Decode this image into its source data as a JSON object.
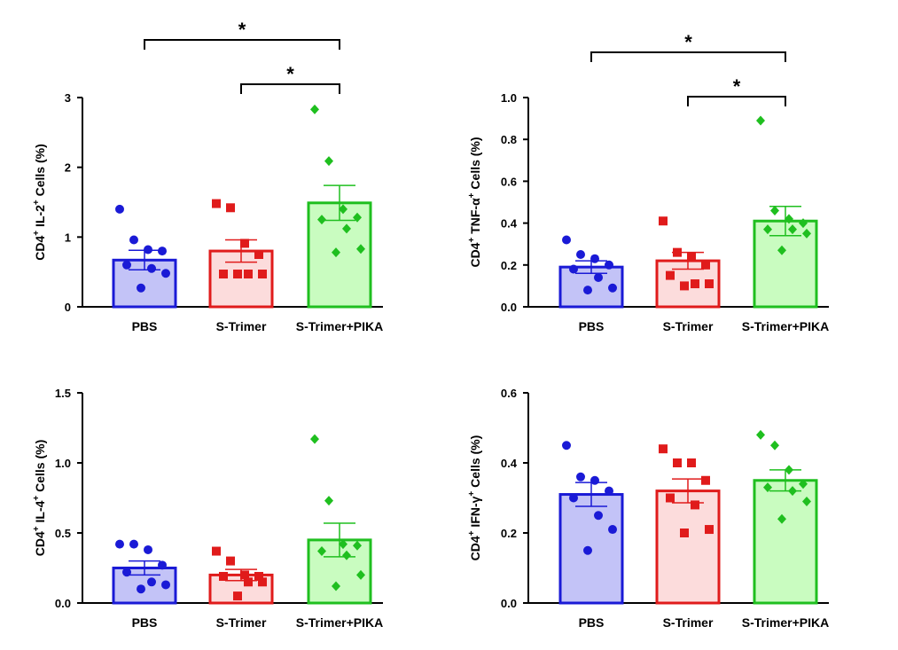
{
  "colors": {
    "PBS": {
      "stroke": "#1a1ad6",
      "fill": "#c3c3f7"
    },
    "S-Trimer": {
      "stroke": "#e01b1b",
      "fill": "#fcdcdc"
    },
    "S-Trimer+PIKA": {
      "stroke": "#1fbf1f",
      "fill": "#c9fcc0"
    }
  },
  "chart_data": [
    {
      "type": "bar",
      "ylabel": {
        "base": "CD4",
        "sup1": "+",
        "mid": " IL-2",
        "sup2": "+",
        "tail": " Cells (%)"
      },
      "categories": [
        "PBS",
        "S-Trimer",
        "S-Trimer+PIKA"
      ],
      "ylim": [
        0,
        3
      ],
      "yticks": [
        0,
        1,
        2,
        3
      ],
      "ytick_labels": [
        "0",
        "1",
        "2",
        "3"
      ],
      "means": [
        0.67,
        0.8,
        1.49
      ],
      "sem": [
        0.14,
        0.16,
        0.25
      ],
      "points": [
        [
          1.4,
          0.96,
          0.82,
          0.8,
          0.6,
          0.55,
          0.48,
          0.27
        ],
        [
          1.48,
          1.42,
          0.91,
          0.75,
          0.47,
          0.47,
          0.47,
          0.47
        ],
        [
          2.83,
          2.09,
          1.4,
          1.28,
          1.25,
          1.12,
          0.83,
          0.78
        ]
      ],
      "markers": [
        "circle",
        "square",
        "diamond"
      ],
      "significance": [
        {
          "from": 0,
          "to": 2,
          "label": "*",
          "level": 1
        },
        {
          "from": 1,
          "to": 2,
          "label": "*",
          "level": 0
        }
      ]
    },
    {
      "type": "bar",
      "ylabel": {
        "base": "CD4",
        "sup1": "+",
        "mid": " TNF-α",
        "sup2": "+",
        "tail": " Cells (%)"
      },
      "categories": [
        "PBS",
        "S-Trimer",
        "S-Trimer+PIKA"
      ],
      "ylim": [
        0,
        1
      ],
      "yticks": [
        0,
        0.2,
        0.4,
        0.6,
        0.8,
        1.0
      ],
      "ytick_labels": [
        "0.0",
        "0.2",
        "0.4",
        "0.6",
        "0.8",
        "1.0"
      ],
      "means": [
        0.19,
        0.22,
        0.41
      ],
      "sem": [
        0.03,
        0.04,
        0.07
      ],
      "points": [
        [
          0.32,
          0.25,
          0.23,
          0.2,
          0.18,
          0.14,
          0.09,
          0.08
        ],
        [
          0.41,
          0.26,
          0.24,
          0.2,
          0.15,
          0.11,
          0.11,
          0.1
        ],
        [
          0.89,
          0.46,
          0.42,
          0.4,
          0.37,
          0.37,
          0.35,
          0.27
        ]
      ],
      "markers": [
        "circle",
        "square",
        "diamond"
      ],
      "significance": [
        {
          "from": 0,
          "to": 2,
          "label": "*",
          "level": 1
        },
        {
          "from": 1,
          "to": 2,
          "label": "*",
          "level": 0
        }
      ]
    },
    {
      "type": "bar",
      "ylabel": {
        "base": "CD4",
        "sup1": "+",
        "mid": " IL-4",
        "sup2": "+",
        "tail": " Cells (%)"
      },
      "categories": [
        "PBS",
        "S-Trimer",
        "S-Trimer+PIKA"
      ],
      "ylim": [
        0,
        1.5
      ],
      "yticks": [
        0,
        0.5,
        1.0,
        1.5
      ],
      "ytick_labels": [
        "0.0",
        "0.5",
        "1.0",
        "1.5"
      ],
      "means": [
        0.25,
        0.2,
        0.45
      ],
      "sem": [
        0.05,
        0.04,
        0.12
      ],
      "points": [
        [
          0.42,
          0.42,
          0.38,
          0.27,
          0.22,
          0.15,
          0.13,
          0.1
        ],
        [
          0.37,
          0.3,
          0.2,
          0.19,
          0.19,
          0.15,
          0.15,
          0.05
        ],
        [
          1.17,
          0.73,
          0.42,
          0.41,
          0.37,
          0.34,
          0.2,
          0.12
        ]
      ],
      "markers": [
        "circle",
        "square",
        "diamond"
      ],
      "significance": []
    },
    {
      "type": "bar",
      "ylabel": {
        "base": "CD4",
        "sup1": "+",
        "mid": " IFN-γ",
        "sup2": "+",
        "tail": " Cells (%)"
      },
      "categories": [
        "PBS",
        "S-Trimer",
        "S-Trimer+PIKA"
      ],
      "ylim": [
        0,
        0.6
      ],
      "yticks": [
        0,
        0.2,
        0.4,
        0.6
      ],
      "ytick_labels": [
        "0.0",
        "0.2",
        "0.4",
        "0.6"
      ],
      "means": [
        0.31,
        0.32,
        0.35
      ],
      "sem": [
        0.034,
        0.034,
        0.03
      ],
      "points": [
        [
          0.45,
          0.36,
          0.35,
          0.32,
          0.3,
          0.25,
          0.21,
          0.15
        ],
        [
          0.44,
          0.4,
          0.4,
          0.35,
          0.3,
          0.28,
          0.21,
          0.2
        ],
        [
          0.48,
          0.45,
          0.38,
          0.34,
          0.33,
          0.32,
          0.29,
          0.24
        ]
      ],
      "markers": [
        "circle",
        "square",
        "diamond"
      ],
      "significance": []
    }
  ]
}
